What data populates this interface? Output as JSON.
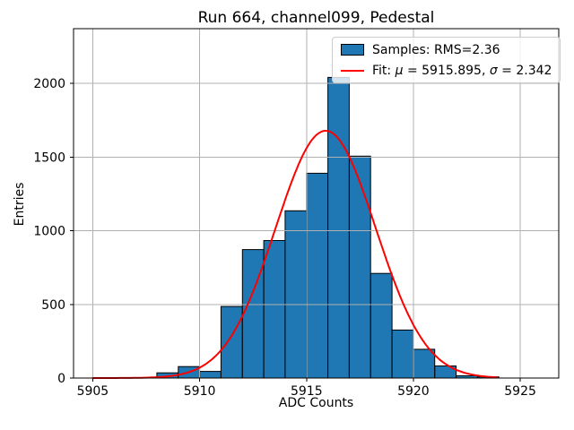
{
  "figure": {
    "background": "#ffffff"
  },
  "chart_data": {
    "type": "bar",
    "subtype": "histogram-with-gaussian-fit",
    "title": "Run 664, channel099, Pedestal",
    "xlabel": "ADC Counts",
    "ylabel": "Entries",
    "bin_edges": [
      5908,
      5909,
      5910,
      5911,
      5912,
      5913,
      5914,
      5915,
      5916,
      5917,
      5918,
      5919,
      5920,
      5921,
      5922,
      5923,
      5924
    ],
    "counts": [
      35,
      78,
      45,
      486,
      872,
      933,
      1135,
      1390,
      2040,
      1506,
      710,
      326,
      195,
      82,
      15,
      8
    ],
    "xticks": [
      5905,
      5910,
      5915,
      5920,
      5925
    ],
    "yticks": [
      0,
      500,
      1000,
      1500,
      2000
    ],
    "xlim": [
      5904.1,
      5926.8
    ],
    "ylim": [
      0,
      2371
    ],
    "grid": true,
    "grid_above_bars": true,
    "colors": {
      "bar_fill": "#1f77b4",
      "bar_edge": "#000000",
      "fit_line": "#ff0000",
      "grid": "#b0b0b0",
      "axis": "#000000",
      "legend_edge": "#cccccc",
      "text": "#000000"
    },
    "fit_curve": {
      "shape": "gaussian",
      "mu": 5915.895,
      "sigma": 2.342,
      "amplitude": 1678,
      "x_start": 5905.0,
      "x_end": 5923.9
    },
    "legend": {
      "location": "upper right",
      "entries": [
        {
          "swatch": "patch",
          "label": "Samples: RMS=2.36"
        },
        {
          "swatch": "line",
          "label": "Fit: μ = 5915.895, σ = 2.342",
          "label_parts": [
            {
              "t": "Fit: "
            },
            {
              "t": "μ",
              "italic": true
            },
            {
              "t": " = 5915.895, "
            },
            {
              "t": "σ",
              "italic": true
            },
            {
              "t": " = 2.342"
            }
          ]
        }
      ]
    }
  }
}
